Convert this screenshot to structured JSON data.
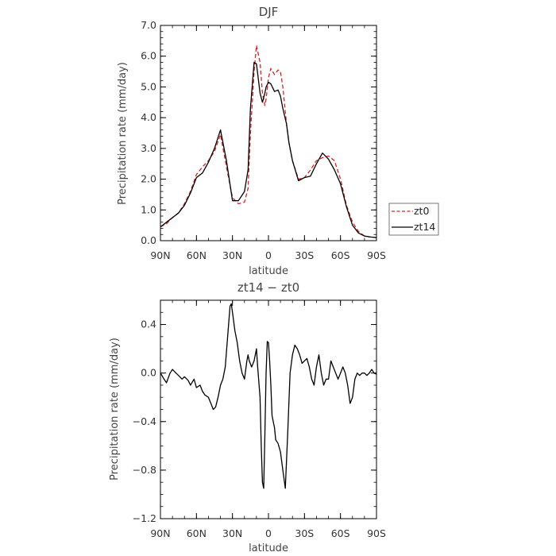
{
  "chart_data": [
    {
      "type": "line",
      "title": "DJF",
      "xlabel": "latitude",
      "ylabel": "Precipitation rate (mm/day)",
      "xlim": [
        90,
        -90
      ],
      "ylim": [
        0,
        7
      ],
      "yticks": [
        "0.0",
        "1.0",
        "2.0",
        "3.0",
        "4.0",
        "5.0",
        "6.0",
        "7.0"
      ],
      "xticks": [
        "90N",
        "60N",
        "30N",
        "0",
        "30S",
        "60S",
        "90S"
      ],
      "legend": {
        "placement": "right",
        "entries": [
          "zt0",
          "zt14"
        ]
      },
      "series": [
        {
          "name": "zt0",
          "color": "#e02020",
          "dash": "dashed",
          "x": [
            90,
            85,
            80,
            75,
            70,
            65,
            60,
            55,
            50,
            45,
            40,
            35,
            30,
            25,
            20,
            17,
            15,
            12,
            10,
            7,
            5,
            3,
            2,
            0,
            -2,
            -5,
            -8,
            -10,
            -12,
            -15,
            -17,
            -20,
            -25,
            -30,
            -35,
            -40,
            -45,
            -50,
            -55,
            -60,
            -65,
            -70,
            -75,
            -80,
            -85,
            -90
          ],
          "y": [
            0.45,
            0.55,
            0.75,
            0.9,
            1.2,
            1.6,
            2.15,
            2.4,
            2.6,
            2.9,
            3.45,
            2.4,
            1.4,
            1.2,
            1.25,
            1.7,
            3.5,
            5.5,
            6.35,
            5.8,
            4.8,
            4.4,
            4.6,
            5.3,
            5.6,
            5.4,
            5.55,
            5.5,
            5.0,
            3.8,
            3.2,
            2.6,
            2.0,
            2.05,
            2.3,
            2.6,
            2.7,
            2.75,
            2.6,
            2.0,
            1.15,
            0.6,
            0.3,
            0.15,
            0.12,
            0.1
          ]
        },
        {
          "name": "zt14",
          "color": "#000000",
          "dash": "solid",
          "x": [
            90,
            85,
            80,
            75,
            70,
            65,
            60,
            55,
            50,
            45,
            40,
            35,
            30,
            25,
            20,
            17,
            15,
            12,
            10,
            7,
            5,
            3,
            2,
            0,
            -2,
            -5,
            -8,
            -10,
            -12,
            -15,
            -17,
            -20,
            -25,
            -30,
            -35,
            -40,
            -45,
            -50,
            -55,
            -60,
            -65,
            -70,
            -75,
            -80,
            -85,
            -90
          ],
          "y": [
            0.45,
            0.6,
            0.75,
            0.9,
            1.15,
            1.55,
            2.05,
            2.2,
            2.55,
            3.0,
            3.6,
            2.6,
            1.3,
            1.3,
            1.6,
            2.3,
            4.3,
            5.8,
            5.75,
            4.8,
            4.5,
            4.8,
            5.0,
            5.15,
            5.1,
            4.85,
            4.9,
            4.7,
            4.3,
            3.8,
            3.2,
            2.6,
            1.95,
            2.05,
            2.1,
            2.5,
            2.85,
            2.65,
            2.3,
            1.85,
            1.1,
            0.5,
            0.25,
            0.15,
            0.12,
            0.1
          ]
        }
      ]
    },
    {
      "type": "line",
      "title": "zt14 − zt0",
      "xlabel": "latitude",
      "ylabel": "Precipitation rate (mm/day)",
      "xlim": [
        90,
        -90
      ],
      "ylim": [
        -1.2,
        0.6
      ],
      "yticks": [
        "−1.2",
        "−0.8",
        "−0.4",
        "0.0",
        "0.4"
      ],
      "xticks": [
        "90N",
        "60N",
        "30N",
        "0",
        "30S",
        "60S",
        "90S"
      ],
      "series": [
        {
          "color": "#000000",
          "dash": "solid",
          "x": [
            90,
            87,
            85,
            82,
            80,
            77,
            75,
            72,
            70,
            67,
            65,
            62,
            60,
            57,
            55,
            53,
            50,
            48,
            46,
            44,
            42,
            40,
            38,
            36,
            34,
            32,
            31,
            30,
            28,
            26,
            24,
            22,
            20,
            18,
            17,
            16,
            14,
            12,
            10,
            9,
            7,
            6,
            5,
            4,
            3,
            2,
            1,
            0,
            -1,
            -2,
            -3,
            -4,
            -5,
            -6,
            -8,
            -10,
            -12,
            -14,
            -16,
            -17,
            -18,
            -20,
            -22,
            -24,
            -26,
            -28,
            -30,
            -32,
            -34,
            -36,
            -38,
            -40,
            -42,
            -44,
            -46,
            -48,
            -50,
            -52,
            -54,
            -56,
            -58,
            -60,
            -62,
            -64,
            -66,
            -68,
            -70,
            -72,
            -74,
            -76,
            -78,
            -80,
            -82,
            -84,
            -86,
            -88,
            -90
          ],
          "y": [
            0.0,
            -0.05,
            -0.08,
            0.0,
            0.03,
            0.0,
            -0.02,
            -0.05,
            -0.03,
            -0.06,
            -0.1,
            -0.05,
            -0.12,
            -0.1,
            -0.15,
            -0.18,
            -0.2,
            -0.25,
            -0.3,
            -0.28,
            -0.2,
            -0.1,
            -0.05,
            0.05,
            0.3,
            0.55,
            0.57,
            0.5,
            0.35,
            0.25,
            0.1,
            0.0,
            -0.05,
            0.1,
            0.15,
            0.1,
            0.05,
            0.1,
            0.2,
            0.05,
            -0.2,
            -0.6,
            -0.9,
            -0.95,
            -0.5,
            0.0,
            0.26,
            0.25,
            0.1,
            -0.1,
            -0.35,
            -0.4,
            -0.45,
            -0.55,
            -0.58,
            -0.65,
            -0.8,
            -0.95,
            -0.5,
            -0.25,
            0.0,
            0.15,
            0.23,
            0.2,
            0.15,
            0.08,
            0.1,
            0.12,
            0.05,
            -0.05,
            -0.1,
            0.05,
            0.15,
            0.0,
            -0.1,
            -0.05,
            -0.05,
            0.1,
            0.05,
            0.0,
            -0.05,
            0.0,
            0.05,
            0.0,
            -0.1,
            -0.25,
            -0.2,
            -0.05,
            0.0,
            -0.02,
            0.0,
            0.0,
            -0.02,
            0.0,
            0.03,
            0.0,
            -0.01
          ]
        }
      ]
    }
  ]
}
